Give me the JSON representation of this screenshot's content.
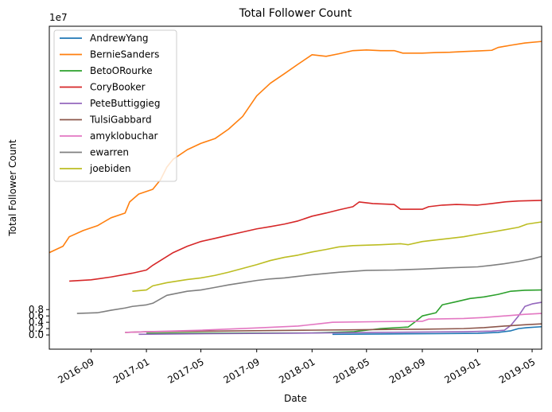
{
  "chart_data": {
    "type": "line",
    "title": "Total Follower Count",
    "xlabel": "Date",
    "ylabel": "Total Follower Count",
    "y_offset_label": "1e7",
    "y_scale": 10000000,
    "xlim": [
      "2016-06-01",
      "2019-05-22"
    ],
    "ylim": [
      -0.45,
      9.75
    ],
    "x_tick_labels": [
      "2016-09",
      "2017-01",
      "2017-05",
      "2017-09",
      "2018-01",
      "2018-05",
      "2018-09",
      "2019-01",
      "2019-05"
    ],
    "x_tick_dates": [
      "2016-09-01",
      "2017-01-01",
      "2017-05-01",
      "2017-09-01",
      "2018-01-01",
      "2018-05-01",
      "2018-09-01",
      "2019-01-01",
      "2019-05-01"
    ],
    "y_ticks": [
      0,
      0.2,
      0.4,
      0.6,
      0.8
    ],
    "y_tick_labels": [
      "0.0",
      "0.2",
      "0.4",
      "0.6",
      "0.8"
    ],
    "grid": false,
    "legend_position": "top-left",
    "series": [
      {
        "name": "AndrewYang",
        "color": "#1f77b4",
        "points": [
          [
            "2018-02-15",
            0.02
          ],
          [
            "2018-06-01",
            0.03
          ],
          [
            "2018-10-01",
            0.04
          ],
          [
            "2019-01-01",
            0.05
          ],
          [
            "2019-02-15",
            0.08
          ],
          [
            "2019-03-15",
            0.13
          ],
          [
            "2019-04-01",
            0.2
          ],
          [
            "2019-04-20",
            0.23
          ],
          [
            "2019-05-22",
            0.26
          ]
        ]
      },
      {
        "name": "BernieSanders",
        "color": "#ff7f0e",
        "points": [
          [
            "2016-06-01",
            2.6
          ],
          [
            "2016-07-01",
            2.8
          ],
          [
            "2016-07-15",
            3.1
          ],
          [
            "2016-08-15",
            3.3
          ],
          [
            "2016-09-15",
            3.45
          ],
          [
            "2016-10-15",
            3.7
          ],
          [
            "2016-11-15",
            3.85
          ],
          [
            "2016-11-25",
            4.2
          ],
          [
            "2016-12-15",
            4.45
          ],
          [
            "2017-01-15",
            4.6
          ],
          [
            "2017-02-01",
            4.9
          ],
          [
            "2017-02-15",
            5.3
          ],
          [
            "2017-03-01",
            5.55
          ],
          [
            "2017-04-01",
            5.85
          ],
          [
            "2017-05-01",
            6.05
          ],
          [
            "2017-06-01",
            6.2
          ],
          [
            "2017-07-01",
            6.5
          ],
          [
            "2017-08-01",
            6.9
          ],
          [
            "2017-09-01",
            7.55
          ],
          [
            "2017-10-01",
            7.95
          ],
          [
            "2017-11-01",
            8.25
          ],
          [
            "2017-12-01",
            8.55
          ],
          [
            "2018-01-01",
            8.85
          ],
          [
            "2018-02-01",
            8.8
          ],
          [
            "2018-03-01",
            8.88
          ],
          [
            "2018-04-01",
            8.98
          ],
          [
            "2018-05-01",
            9.0
          ],
          [
            "2018-06-01",
            8.98
          ],
          [
            "2018-07-01",
            8.98
          ],
          [
            "2018-07-20",
            8.9
          ],
          [
            "2018-09-01",
            8.9
          ],
          [
            "2018-10-01",
            8.92
          ],
          [
            "2018-11-01",
            8.93
          ],
          [
            "2018-12-01",
            8.95
          ],
          [
            "2019-01-01",
            8.97
          ],
          [
            "2019-02-01",
            8.99
          ],
          [
            "2019-02-15",
            9.08
          ],
          [
            "2019-03-15",
            9.15
          ],
          [
            "2019-04-15",
            9.22
          ],
          [
            "2019-05-22",
            9.27
          ]
        ]
      },
      {
        "name": "BetoORourke",
        "color": "#2ca02c",
        "points": [
          [
            "2017-01-01",
            0.05
          ],
          [
            "2018-01-01",
            0.06
          ],
          [
            "2018-04-01",
            0.1
          ],
          [
            "2018-06-01",
            0.2
          ],
          [
            "2018-08-01",
            0.25
          ],
          [
            "2018-08-15",
            0.4
          ],
          [
            "2018-09-01",
            0.6
          ],
          [
            "2018-10-01",
            0.7
          ],
          [
            "2018-10-15",
            0.95
          ],
          [
            "2018-11-15",
            1.05
          ],
          [
            "2018-12-15",
            1.15
          ],
          [
            "2019-01-15",
            1.2
          ],
          [
            "2019-02-15",
            1.28
          ],
          [
            "2019-03-15",
            1.38
          ],
          [
            "2019-04-15",
            1.41
          ],
          [
            "2019-05-22",
            1.42
          ]
        ]
      },
      {
        "name": "CoryBooker",
        "color": "#d62728",
        "points": [
          [
            "2016-07-15",
            1.7
          ],
          [
            "2016-09-01",
            1.74
          ],
          [
            "2016-10-15",
            1.83
          ],
          [
            "2016-12-01",
            1.95
          ],
          [
            "2017-01-01",
            2.05
          ],
          [
            "2017-01-15",
            2.2
          ],
          [
            "2017-03-01",
            2.6
          ],
          [
            "2017-04-01",
            2.8
          ],
          [
            "2017-05-01",
            2.95
          ],
          [
            "2017-06-01",
            3.05
          ],
          [
            "2017-07-01",
            3.15
          ],
          [
            "2017-08-01",
            3.25
          ],
          [
            "2017-09-01",
            3.35
          ],
          [
            "2017-10-01",
            3.42
          ],
          [
            "2017-11-01",
            3.5
          ],
          [
            "2017-12-01",
            3.6
          ],
          [
            "2018-01-01",
            3.75
          ],
          [
            "2018-02-01",
            3.85
          ],
          [
            "2018-03-01",
            3.95
          ],
          [
            "2018-04-01",
            4.05
          ],
          [
            "2018-04-15",
            4.2
          ],
          [
            "2018-05-15",
            4.15
          ],
          [
            "2018-07-01",
            4.12
          ],
          [
            "2018-07-15",
            3.97
          ],
          [
            "2018-09-01",
            3.97
          ],
          [
            "2018-09-15",
            4.05
          ],
          [
            "2018-10-15",
            4.1
          ],
          [
            "2018-11-15",
            4.12
          ],
          [
            "2019-01-01",
            4.1
          ],
          [
            "2019-02-01",
            4.15
          ],
          [
            "2019-03-01",
            4.2
          ],
          [
            "2019-04-01",
            4.23
          ],
          [
            "2019-05-22",
            4.25
          ]
        ]
      },
      {
        "name": "PeteButtiggieg",
        "color": "#9467bd",
        "points": [
          [
            "2016-12-15",
            0.02
          ],
          [
            "2017-06-01",
            0.04
          ],
          [
            "2018-01-01",
            0.06
          ],
          [
            "2018-06-01",
            0.08
          ],
          [
            "2018-12-01",
            0.1
          ],
          [
            "2019-02-01",
            0.12
          ],
          [
            "2019-03-01",
            0.15
          ],
          [
            "2019-03-15",
            0.3
          ],
          [
            "2019-04-01",
            0.6
          ],
          [
            "2019-04-15",
            0.9
          ],
          [
            "2019-05-01",
            0.98
          ],
          [
            "2019-05-22",
            1.03
          ]
        ]
      },
      {
        "name": "TulsiGabbard",
        "color": "#8c564b",
        "points": [
          [
            "2016-11-15",
            0.08
          ],
          [
            "2017-01-01",
            0.1
          ],
          [
            "2017-06-01",
            0.12
          ],
          [
            "2018-01-01",
            0.15
          ],
          [
            "2018-06-01",
            0.17
          ],
          [
            "2018-09-01",
            0.18
          ],
          [
            "2018-12-01",
            0.2
          ],
          [
            "2019-01-15",
            0.23
          ],
          [
            "2019-03-01",
            0.28
          ],
          [
            "2019-04-15",
            0.32
          ],
          [
            "2019-05-22",
            0.35
          ]
        ]
      },
      {
        "name": "amyklobuchar",
        "color": "#e377c2",
        "points": [
          [
            "2016-11-15",
            0.08
          ],
          [
            "2017-01-01",
            0.1
          ],
          [
            "2017-05-01",
            0.15
          ],
          [
            "2017-09-01",
            0.22
          ],
          [
            "2017-12-01",
            0.28
          ],
          [
            "2018-01-15",
            0.35
          ],
          [
            "2018-02-15",
            0.4
          ],
          [
            "2018-06-01",
            0.42
          ],
          [
            "2018-09-01",
            0.43
          ],
          [
            "2018-09-15",
            0.5
          ],
          [
            "2018-12-01",
            0.52
          ],
          [
            "2019-01-15",
            0.55
          ],
          [
            "2019-03-01",
            0.6
          ],
          [
            "2019-04-15",
            0.65
          ],
          [
            "2019-05-22",
            0.68
          ]
        ]
      },
      {
        "name": "ewarren",
        "color": "#7f7f7f",
        "points": [
          [
            "2016-08-01",
            0.68
          ],
          [
            "2016-09-15",
            0.7
          ],
          [
            "2016-10-15",
            0.78
          ],
          [
            "2016-11-15",
            0.85
          ],
          [
            "2016-12-01",
            0.9
          ],
          [
            "2017-01-01",
            0.95
          ],
          [
            "2017-01-15",
            1.0
          ],
          [
            "2017-02-15",
            1.25
          ],
          [
            "2017-04-01",
            1.38
          ],
          [
            "2017-05-01",
            1.42
          ],
          [
            "2017-06-01",
            1.5
          ],
          [
            "2017-07-01",
            1.58
          ],
          [
            "2017-08-01",
            1.65
          ],
          [
            "2017-09-01",
            1.72
          ],
          [
            "2017-10-01",
            1.77
          ],
          [
            "2017-11-01",
            1.8
          ],
          [
            "2017-12-01",
            1.85
          ],
          [
            "2018-01-01",
            1.9
          ],
          [
            "2018-03-01",
            1.98
          ],
          [
            "2018-05-01",
            2.04
          ],
          [
            "2018-07-01",
            2.05
          ],
          [
            "2018-09-01",
            2.08
          ],
          [
            "2018-11-01",
            2.12
          ],
          [
            "2019-01-01",
            2.15
          ],
          [
            "2019-02-01",
            2.2
          ],
          [
            "2019-03-01",
            2.25
          ],
          [
            "2019-04-01",
            2.32
          ],
          [
            "2019-05-01",
            2.4
          ],
          [
            "2019-05-22",
            2.48
          ]
        ]
      },
      {
        "name": "joebiden",
        "color": "#bcbd22",
        "points": [
          [
            "2016-12-01",
            1.38
          ],
          [
            "2017-01-01",
            1.42
          ],
          [
            "2017-01-15",
            1.55
          ],
          [
            "2017-02-15",
            1.65
          ],
          [
            "2017-04-01",
            1.75
          ],
          [
            "2017-05-01",
            1.8
          ],
          [
            "2017-06-01",
            1.88
          ],
          [
            "2017-07-01",
            1.98
          ],
          [
            "2017-08-01",
            2.1
          ],
          [
            "2017-09-01",
            2.22
          ],
          [
            "2017-10-01",
            2.35
          ],
          [
            "2017-11-01",
            2.45
          ],
          [
            "2017-12-01",
            2.52
          ],
          [
            "2018-01-01",
            2.62
          ],
          [
            "2018-02-01",
            2.7
          ],
          [
            "2018-03-01",
            2.78
          ],
          [
            "2018-04-01",
            2.82
          ],
          [
            "2018-06-01",
            2.85
          ],
          [
            "2018-07-15",
            2.88
          ],
          [
            "2018-08-01",
            2.85
          ],
          [
            "2018-09-01",
            2.95
          ],
          [
            "2018-10-01",
            3.0
          ],
          [
            "2018-11-01",
            3.05
          ],
          [
            "2018-12-01",
            3.1
          ],
          [
            "2019-01-01",
            3.18
          ],
          [
            "2019-02-01",
            3.25
          ],
          [
            "2019-03-01",
            3.32
          ],
          [
            "2019-04-01",
            3.4
          ],
          [
            "2019-04-20",
            3.5
          ],
          [
            "2019-05-22",
            3.57
          ]
        ]
      }
    ]
  }
}
